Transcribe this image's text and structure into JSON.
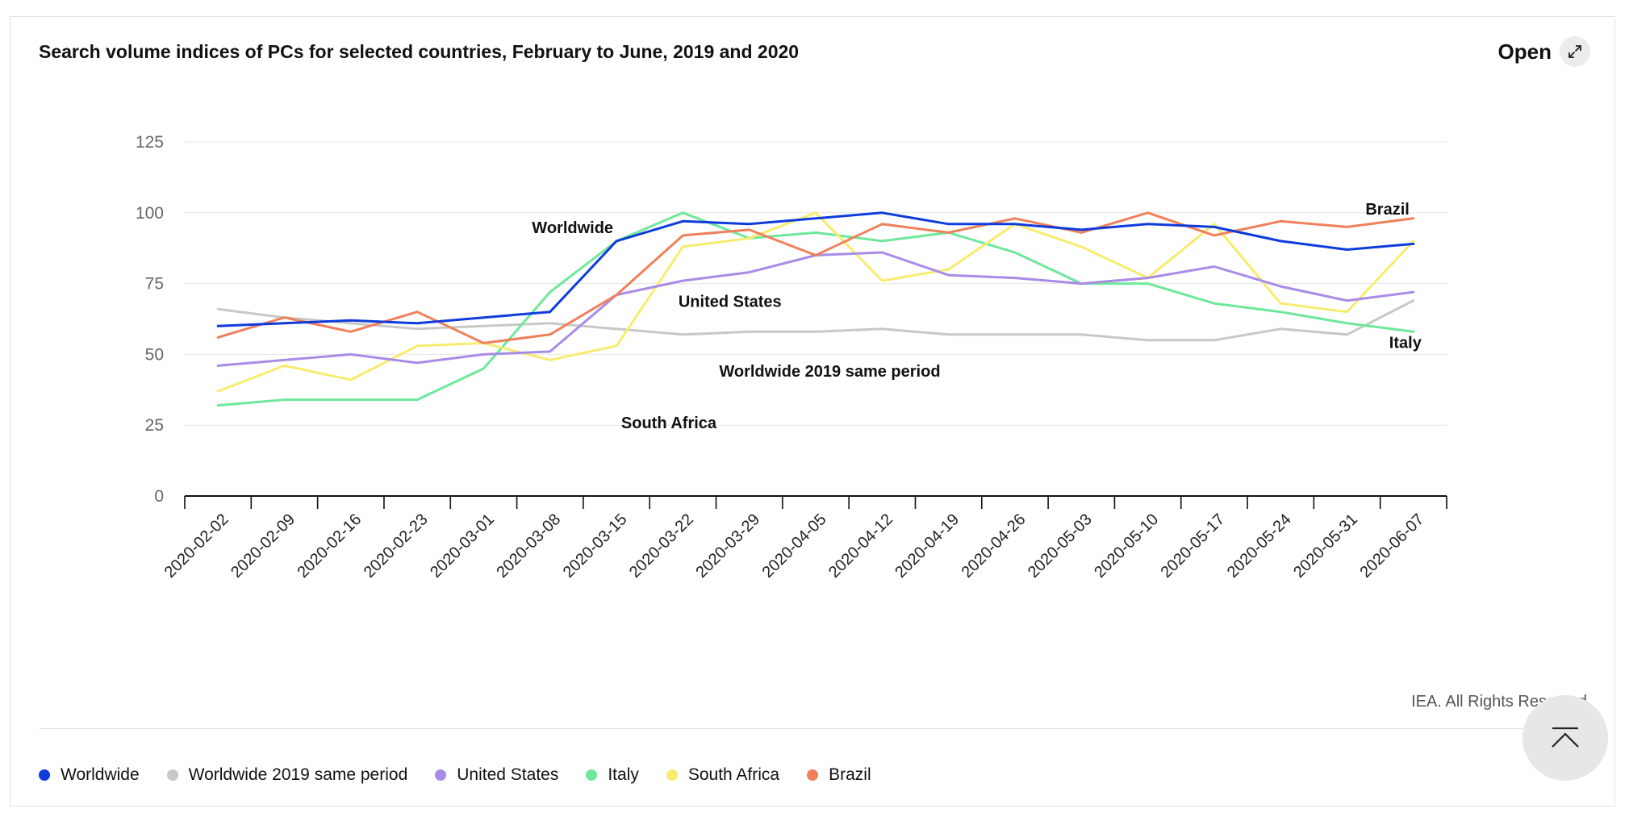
{
  "title": "Search volume indices of PCs for selected countries, February to June, 2019 and 2020",
  "open_label": "Open",
  "credit": "IEA. All Rights Reserved",
  "chart_data": {
    "type": "line",
    "title": "Search volume indices of PCs for selected countries, February to June, 2019 and 2020",
    "xlabel": "",
    "ylabel": "",
    "ylim": [
      0,
      125
    ],
    "yticks": [
      "0",
      "25",
      "50",
      "75",
      "100",
      "125"
    ],
    "grid": true,
    "legend_position": "bottom-left",
    "categories": [
      "2020-02-02",
      "2020-02-09",
      "2020-02-16",
      "2020-02-23",
      "2020-03-01",
      "2020-03-08",
      "2020-03-15",
      "2020-03-22",
      "2020-03-29",
      "2020-04-05",
      "2020-04-12",
      "2020-04-19",
      "2020-04-26",
      "2020-05-03",
      "2020-05-10",
      "2020-05-17",
      "2020-05-24",
      "2020-05-31",
      "2020-06-07"
    ],
    "series": [
      {
        "name": "Worldwide 2019 same period",
        "color": "#c8c8c8",
        "label": "Worldwide 2019 same period",
        "values": [
          66,
          63,
          61,
          59,
          60,
          61,
          59,
          57,
          58,
          58,
          59,
          57,
          57,
          57,
          55,
          55,
          59,
          57,
          69
        ]
      },
      {
        "name": "Italy",
        "color": "#6ee89a",
        "label": "Italy",
        "values": [
          32,
          34,
          34,
          34,
          45,
          72,
          90,
          100,
          91,
          93,
          90,
          93,
          86,
          75,
          75,
          68,
          65,
          61,
          58
        ]
      },
      {
        "name": "South Africa",
        "color": "#f7ec6e",
        "label": "South Africa",
        "values": [
          37,
          46,
          41,
          53,
          54,
          48,
          53,
          88,
          91,
          100,
          76,
          80,
          96,
          88,
          77,
          96,
          68,
          65,
          90
        ]
      },
      {
        "name": "United States",
        "color": "#a98be8",
        "label": "United States",
        "values": [
          46,
          48,
          50,
          47,
          50,
          51,
          71,
          76,
          79,
          85,
          86,
          78,
          77,
          75,
          77,
          81,
          74,
          69,
          72
        ]
      },
      {
        "name": "Brazil",
        "color": "#f0805a",
        "label": "Brazil",
        "values": [
          56,
          63,
          58,
          65,
          54,
          57,
          71,
          92,
          94,
          85,
          96,
          93,
          98,
          93,
          100,
          92,
          97,
          95,
          98
        ]
      },
      {
        "name": "Worldwide",
        "color": "#0e3bdc",
        "label": "Worldwide",
        "values": [
          60,
          61,
          62,
          61,
          63,
          65,
          90,
          97,
          96,
          98,
          100,
          96,
          96,
          94,
          96,
          95,
          90,
          87,
          89
        ]
      }
    ]
  },
  "legend": [
    {
      "label": "Worldwide",
      "color": "#0e3bdc"
    },
    {
      "label": "Worldwide 2019 same period",
      "color": "#c8c8c8"
    },
    {
      "label": "United States",
      "color": "#a98be8"
    },
    {
      "label": "Italy",
      "color": "#6ee89a"
    },
    {
      "label": "South Africa",
      "color": "#f7ec6e"
    },
    {
      "label": "Brazil",
      "color": "#f0805a"
    }
  ]
}
